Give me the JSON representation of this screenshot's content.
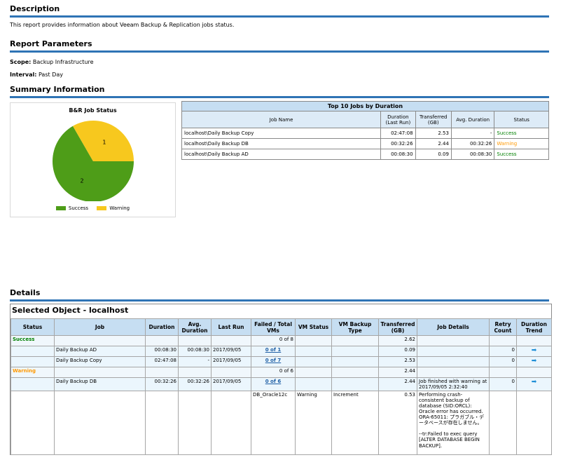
{
  "description": {
    "heading": "Description",
    "text": "This report provides information about Veeam Backup & Replication jobs status."
  },
  "report_parameters": {
    "heading": "Report Parameters",
    "scope_label": "Scope:",
    "scope_value": "Backup Infrastructure",
    "interval_label": "Interval:",
    "interval_value": "Past Day"
  },
  "summary": {
    "heading": "Summary Information",
    "chart_title": "B&R Job Status",
    "legend": [
      "Success",
      "Warning"
    ]
  },
  "chart_data": {
    "type": "pie",
    "title": "B&R Job Status",
    "categories": [
      "Success",
      "Warning"
    ],
    "values": [
      2,
      1
    ],
    "colors": [
      "#4e9d18",
      "#f7c81e"
    ],
    "labels": [
      "2",
      "1"
    ],
    "legend_placement": "bottom"
  },
  "top10": {
    "caption": "Top 10 Jobs by Duration",
    "headers": [
      "Job Name",
      "Duration (Last Run)",
      "Transferred (GB)",
      "Avg. Duration",
      "Status"
    ],
    "rows": [
      {
        "job": "localhost\\Daily Backup Copy",
        "duration": "02:47:08",
        "transferred": "2.53",
        "avg": "-",
        "status": "Success"
      },
      {
        "job": "localhost\\Daily Backup DB",
        "duration": "00:32:26",
        "transferred": "2.44",
        "avg": "00:32:26",
        "status": "Warning"
      },
      {
        "job": "localhost\\Daily Backup AD",
        "duration": "00:08:30",
        "transferred": "0.09",
        "avg": "00:08:30",
        "status": "Success"
      }
    ]
  },
  "details": {
    "heading": "Details",
    "caption": "Selected Object - localhost",
    "headers": [
      "Status",
      "Job",
      "Duration",
      "Avg. Duration",
      "Last Run",
      "Failed / Total VMs",
      "VM Status",
      "VM Backup Type",
      "Transferred (GB)",
      "Job Details",
      "Retry Count",
      "Duration Trend"
    ],
    "success_group": {
      "status": "Success",
      "failed_total": "0 of 8",
      "transferred": "2.62"
    },
    "success_jobs": [
      {
        "job": "Daily Backup AD",
        "duration": "00:08:30",
        "avg": "00:08:30",
        "last_run": "2017/09/05",
        "failed_total": "0 of 1",
        "transferred": "0.09",
        "retry": "0"
      },
      {
        "job": "Daily Backup Copy",
        "duration": "02:47:08",
        "avg": "-",
        "last_run": "2017/09/05",
        "failed_total": "0 of 7",
        "transferred": "2.53",
        "retry": "0"
      }
    ],
    "warning_group": {
      "status": "Warning",
      "failed_total": "0 of 6",
      "transferred": "2.44"
    },
    "warning_job": {
      "job": "Daily Backup DB",
      "duration": "00:32:26",
      "avg": "00:32:26",
      "last_run": "2017/09/05",
      "failed_total": "0 of 6",
      "transferred": "2.44",
      "details": "Job finished with warning at 2017/09/05 2:32:40",
      "retry": "0"
    },
    "vm_row": {
      "vm": "DB_Oracle12c",
      "vm_status": "Warning",
      "backup_type": "Increment",
      "transferred": "0.53",
      "details": "Performing crash-consistent backup of database (SID:ORCL): Oracle error has occurred. ORA-65011: プラガブル・データベースが存在しません。\n\n--tr:Failed to exec query [ALTER DATABASE BEGIN BACKUP]."
    }
  }
}
